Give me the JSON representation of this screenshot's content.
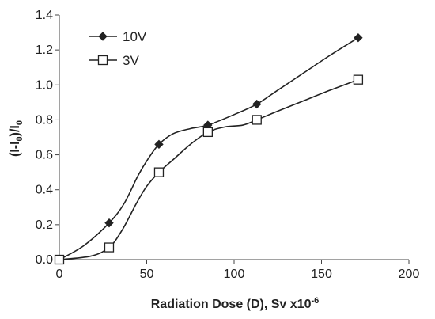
{
  "chart_data": {
    "type": "line",
    "xlabel": "Radiation Dose (D), Sv x10",
    "xlabel_superscript": "-6",
    "ylabel_parts": [
      "(I-I",
      "0",
      ")/I",
      "0"
    ],
    "xlim": [
      0,
      200
    ],
    "ylim": [
      0,
      1.4
    ],
    "x_ticks": [
      "0",
      "50",
      "100",
      "150",
      "200"
    ],
    "y_ticks": [
      "0.0",
      "0.2",
      "0.4",
      "0.6",
      "0.8",
      "1.0",
      "1.2",
      "1.4"
    ],
    "grid": false,
    "legend_position": "top-left",
    "series": [
      {
        "name": "10V",
        "marker": "filled-diamond",
        "color": "#222222",
        "x": [
          0,
          28.5,
          57,
          85,
          113,
          171
        ],
        "y": [
          0.0,
          0.21,
          0.66,
          0.77,
          0.89,
          1.27
        ],
        "curve": [
          [
            0,
            0.0
          ],
          [
            14,
            0.08
          ],
          [
            28.5,
            0.21
          ],
          [
            37,
            0.32
          ],
          [
            45,
            0.48
          ],
          [
            51,
            0.58
          ],
          [
            57,
            0.66
          ],
          [
            65,
            0.72
          ],
          [
            75,
            0.75
          ],
          [
            85,
            0.77
          ],
          [
            100,
            0.83
          ],
          [
            113,
            0.89
          ],
          [
            125,
            0.97
          ],
          [
            140,
            1.07
          ],
          [
            155,
            1.17
          ],
          [
            171,
            1.27
          ]
        ]
      },
      {
        "name": "3V",
        "marker": "open-square",
        "color": "#222222",
        "x": [
          0,
          28.5,
          57,
          85,
          113,
          171
        ],
        "y": [
          0.0,
          0.07,
          0.5,
          0.73,
          0.8,
          1.03
        ],
        "curve": [
          [
            0,
            0.0
          ],
          [
            18,
            0.02
          ],
          [
            28.5,
            0.07
          ],
          [
            36,
            0.17
          ],
          [
            44,
            0.32
          ],
          [
            50,
            0.42
          ],
          [
            57,
            0.5
          ],
          [
            66,
            0.58
          ],
          [
            75,
            0.66
          ],
          [
            85,
            0.73
          ],
          [
            95,
            0.76
          ],
          [
            105,
            0.77
          ],
          [
            113,
            0.8
          ],
          [
            125,
            0.85
          ],
          [
            140,
            0.91
          ],
          [
            155,
            0.97
          ],
          [
            171,
            1.03
          ]
        ]
      }
    ]
  }
}
